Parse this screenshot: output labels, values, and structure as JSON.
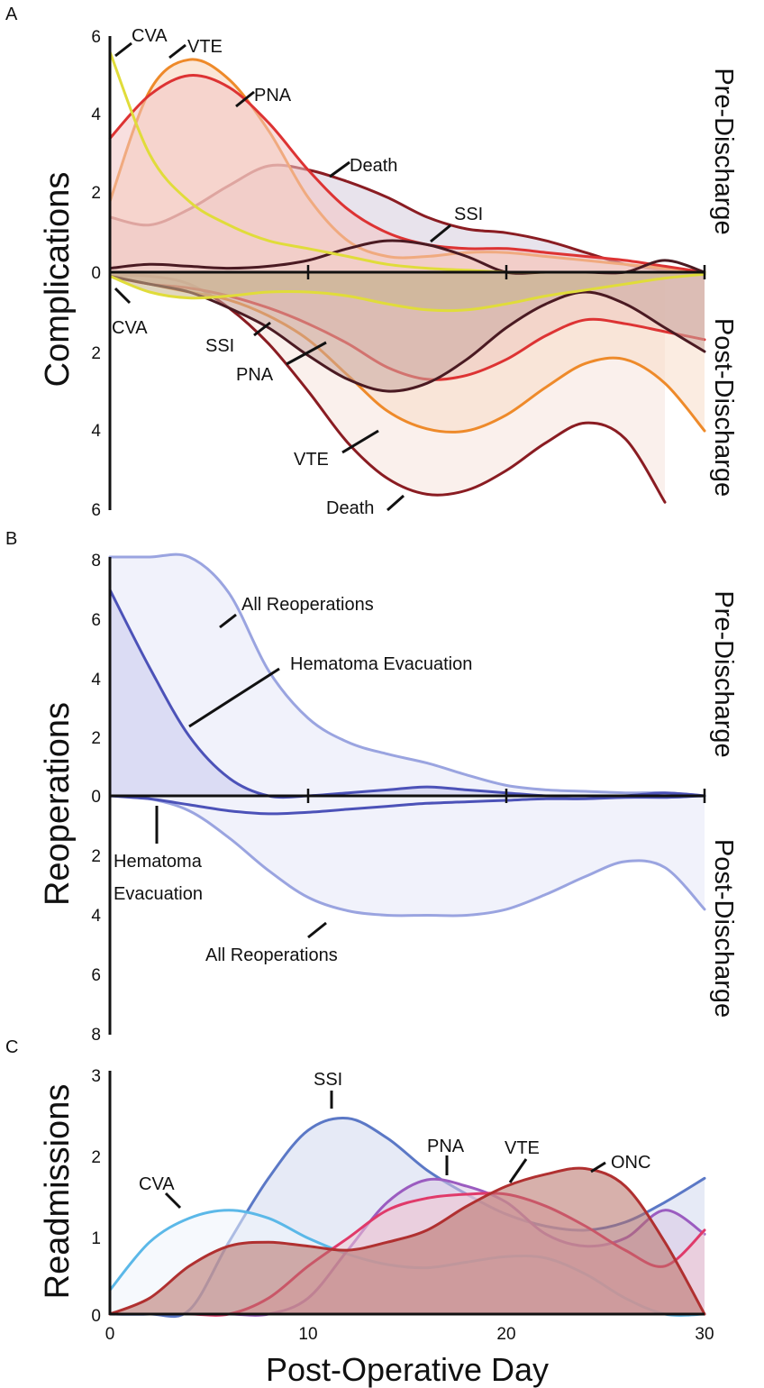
{
  "colors": {
    "CVA": "#e0dc3a",
    "VTE": "#ee8a2a",
    "PNA": "#dd3333",
    "Death": "#8a1c22",
    "SSI": "#4a1a22",
    "CVA_C": "#5bb8e8",
    "SSI_C": "#5b78c6",
    "PNA_C": "#9b5cc0",
    "VTE_C": "#e03a6a",
    "ONC_C": "#b03030",
    "AllReop": "#9aa4e0",
    "HemEvac": "#4c52b8"
  },
  "chart_data": [
    {
      "id": "A",
      "panel_label": "A",
      "type": "area",
      "ylabel": "Complications",
      "top_side_label": "Pre-Discharge",
      "bottom_side_label": "Post-Discharge",
      "xlim": [
        0,
        30
      ],
      "ylim_top": [
        0,
        6
      ],
      "ylim_bottom": [
        0,
        6
      ],
      "y_ticks_top": [
        "6",
        "4",
        "2",
        "0"
      ],
      "y_ticks_bottom": [
        "2",
        "4",
        "6"
      ],
      "pre": {
        "x": [
          0,
          2,
          4,
          6,
          8,
          10,
          12,
          14,
          16,
          18,
          20,
          22,
          24,
          26,
          28,
          30
        ],
        "series": [
          {
            "name": "Death",
            "color": "#8a1c22",
            "fill": "#d6ccdc",
            "values": [
              1.4,
              1.2,
              1.6,
              2.2,
              2.7,
              2.6,
              2.3,
              1.9,
              1.4,
              1.1,
              1.0,
              0.8,
              0.5,
              0.2,
              0.05,
              0.0
            ]
          },
          {
            "name": "VTE",
            "color": "#ee8a2a",
            "fill": "#f8d2b6",
            "values": [
              1.8,
              4.6,
              5.4,
              4.9,
              3.6,
              1.9,
              0.8,
              0.4,
              0.4,
              0.5,
              0.5,
              0.4,
              0.3,
              0.2,
              0.1,
              0.0
            ]
          },
          {
            "name": "PNA",
            "color": "#dd3333",
            "fill": "#f2c4c4",
            "values": [
              3.4,
              4.5,
              5.0,
              4.7,
              3.8,
              2.6,
              1.6,
              1.0,
              0.7,
              0.6,
              0.6,
              0.5,
              0.4,
              0.3,
              0.15,
              0.0
            ]
          },
          {
            "name": "SSI",
            "color": "#4a1a22",
            "fill": "none",
            "values": [
              0.1,
              0.2,
              0.15,
              0.1,
              0.15,
              0.3,
              0.6,
              0.8,
              0.7,
              0.4,
              0.0,
              0.0,
              0.0,
              0.0,
              0.3,
              0.0
            ]
          },
          {
            "name": "CVA",
            "color": "#e0dc3a",
            "fill": "none",
            "values": [
              5.6,
              3.0,
              1.8,
              1.2,
              0.8,
              0.6,
              0.4,
              0.2,
              0.1,
              0.05,
              0.0,
              0.0,
              0.0,
              0.0,
              0.0,
              0.0
            ]
          }
        ]
      },
      "post": {
        "x": [
          0,
          2,
          4,
          6,
          8,
          10,
          12,
          14,
          16,
          18,
          20,
          22,
          24,
          26,
          28,
          30
        ],
        "series": [
          {
            "name": "Death",
            "color": "#8a1c22",
            "fill": "#f6e4dc",
            "values": [
              0.1,
              0.1,
              0.3,
              0.9,
              1.8,
              3.0,
              4.3,
              5.2,
              5.6,
              5.5,
              5.0,
              4.3,
              3.8,
              4.2,
              5.8,
              null
            ]
          },
          {
            "name": "VTE",
            "color": "#ee8a2a",
            "fill": "#f7dcc8",
            "values": [
              0.1,
              0.3,
              0.5,
              0.7,
              1.1,
              1.7,
              2.6,
              3.5,
              3.95,
              4.0,
              3.6,
              2.9,
              2.3,
              2.2,
              2.8,
              4.0
            ]
          },
          {
            "name": "PNA",
            "color": "#dd3333",
            "fill": "#efc8c0",
            "values": [
              0.1,
              0.3,
              0.4,
              0.6,
              0.9,
              1.3,
              1.8,
              2.4,
              2.7,
              2.6,
              2.2,
              1.6,
              1.2,
              1.3,
              1.5,
              1.7
            ]
          },
          {
            "name": "SSI",
            "color": "#4a1a22",
            "fill": "#c8a8a0",
            "values": [
              0.1,
              0.3,
              0.5,
              0.9,
              1.4,
              2.1,
              2.7,
              3.0,
              2.8,
              2.2,
              1.4,
              0.8,
              0.5,
              0.8,
              1.4,
              2.0
            ]
          },
          {
            "name": "CVA",
            "color": "#e0dc3a",
            "fill": "#c9b48c",
            "values": [
              0.1,
              0.5,
              0.65,
              0.6,
              0.5,
              0.5,
              0.6,
              0.8,
              0.95,
              0.95,
              0.8,
              0.6,
              0.45,
              0.3,
              0.15,
              0.05
            ]
          }
        ]
      },
      "labels_pre": [
        "CVA",
        "VTE",
        "PNA",
        "Death",
        "SSI"
      ],
      "labels_post": [
        "CVA",
        "SSI",
        "PNA",
        "VTE",
        "Death"
      ]
    },
    {
      "id": "B",
      "panel_label": "B",
      "type": "area",
      "ylabel": "Reoperations",
      "top_side_label": "Pre-Discharge",
      "bottom_side_label": "Post-Discharge",
      "xlim": [
        0,
        30
      ],
      "ylim_top": [
        0,
        8
      ],
      "ylim_bottom": [
        0,
        8
      ],
      "y_ticks_top": [
        "8",
        "6",
        "4",
        "2",
        "0"
      ],
      "y_ticks_bottom": [
        "2",
        "4",
        "6",
        "8"
      ],
      "pre": {
        "x": [
          0,
          2,
          4,
          6,
          8,
          10,
          12,
          14,
          16,
          18,
          20,
          22,
          24,
          26,
          28,
          30
        ],
        "series": [
          {
            "name": "All Reoperations",
            "color": "#9aa4e0",
            "fill": "#e6e8f8",
            "values": [
              8.0,
              8.0,
              8.0,
              6.8,
              4.2,
              2.6,
              1.8,
              1.4,
              1.1,
              0.7,
              0.35,
              0.2,
              0.15,
              0.1,
              0.1,
              0.0
            ]
          },
          {
            "name": "Hematoma Evacuation",
            "color": "#4c52b8",
            "fill": "#c9cbee",
            "values": [
              6.9,
              4.3,
              2.0,
              0.6,
              0.0,
              0.0,
              0.1,
              0.2,
              0.3,
              0.2,
              0.1,
              0.0,
              0.0,
              0.0,
              0.1,
              0.0
            ]
          }
        ]
      },
      "post": {
        "x": [
          0,
          2,
          4,
          6,
          8,
          10,
          12,
          14,
          16,
          18,
          20,
          22,
          24,
          26,
          28,
          30
        ],
        "series": [
          {
            "name": "All Reoperations",
            "color": "#9aa4e0",
            "fill": "#e6e8f8",
            "values": [
              0.0,
              0.1,
              0.5,
              1.4,
              2.5,
              3.4,
              3.85,
              4.0,
              4.0,
              4.0,
              3.8,
              3.3,
              2.7,
              2.2,
              2.4,
              3.8
            ]
          },
          {
            "name": "Hematoma Evacuation",
            "color": "#4c52b8",
            "fill": "none",
            "values": [
              0.0,
              0.1,
              0.3,
              0.5,
              0.6,
              0.55,
              0.45,
              0.35,
              0.25,
              0.2,
              0.15,
              0.1,
              0.1,
              0.05,
              0.05,
              0.0
            ]
          }
        ]
      },
      "labels_pre": [
        "All Reoperations",
        "Hematoma Evacuation"
      ],
      "labels_post_line1": "Hematoma",
      "labels_post_line2": "Evacuation",
      "labels_post_all": "All Reoperations"
    },
    {
      "id": "C",
      "panel_label": "C",
      "type": "area",
      "ylabel": "Readmissions",
      "xlabel": "Post-Operative Day",
      "xlim": [
        0,
        30
      ],
      "ylim": [
        0,
        3
      ],
      "x_ticks": [
        "0",
        "10",
        "20",
        "30"
      ],
      "y_ticks": [
        "3",
        "2",
        "1",
        "0"
      ],
      "x": [
        0,
        2,
        4,
        6,
        8,
        10,
        12,
        14,
        16,
        18,
        20,
        22,
        24,
        26,
        28,
        30
      ],
      "series": [
        {
          "name": "SSI",
          "color": "#5b78c6",
          "fill": "#d2d8ee",
          "values": [
            0.0,
            0.0,
            0.05,
            0.9,
            1.7,
            2.3,
            2.45,
            2.2,
            1.8,
            1.5,
            1.25,
            1.1,
            1.05,
            1.15,
            1.4,
            1.7
          ]
        },
        {
          "name": "CVA",
          "color": "#5bb8e8",
          "fill": "#eef4fb",
          "values": [
            0.3,
            0.9,
            1.2,
            1.3,
            1.2,
            0.95,
            0.75,
            0.62,
            0.58,
            0.65,
            0.72,
            0.7,
            0.5,
            0.2,
            0.0,
            0.0
          ]
        },
        {
          "name": "PNA",
          "color": "#9b5cc0",
          "fill": "#d9c6e4",
          "values": [
            0.0,
            0.0,
            0.0,
            0.0,
            0.0,
            0.2,
            0.8,
            1.4,
            1.68,
            1.6,
            1.4,
            1.0,
            0.85,
            0.95,
            1.3,
            1.0
          ]
        },
        {
          "name": "VTE",
          "color": "#e03a6a",
          "fill": "#f2c8d4",
          "values": [
            0.0,
            0.0,
            0.0,
            0.0,
            0.2,
            0.6,
            0.95,
            1.3,
            1.45,
            1.5,
            1.5,
            1.35,
            1.1,
            0.8,
            0.6,
            1.05
          ]
        },
        {
          "name": "ONC",
          "color": "#b03030",
          "fill": "#b66f66",
          "values": [
            0.0,
            0.2,
            0.6,
            0.85,
            0.9,
            0.85,
            0.8,
            0.9,
            1.05,
            1.35,
            1.6,
            1.75,
            1.82,
            1.6,
            0.9,
            0.0
          ]
        }
      ],
      "labels": [
        "CVA",
        "SSI",
        "PNA",
        "VTE",
        "ONC"
      ]
    }
  ]
}
